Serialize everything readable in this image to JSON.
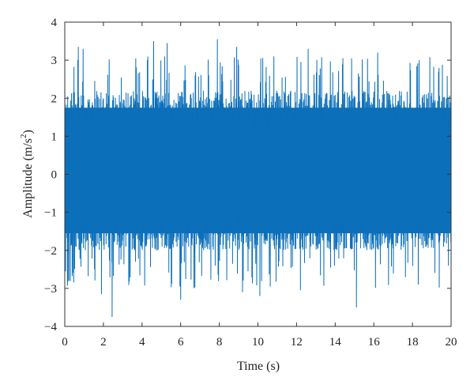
{
  "chart_data": {
    "type": "line",
    "title": "",
    "xlabel": "Time (s)",
    "ylabel_main": "Amplitude (m/s",
    "ylabel_sup": "2",
    "ylabel_tail": ")",
    "xlim": [
      0,
      20
    ],
    "ylim": [
      -4,
      4
    ],
    "x_ticks": [
      0,
      2,
      4,
      6,
      8,
      10,
      12,
      14,
      16,
      18,
      20
    ],
    "y_ticks": [
      -4,
      -3,
      -2,
      -1,
      0,
      1,
      2,
      3,
      4
    ],
    "x_tick_labels": [
      "0",
      "2",
      "4",
      "6",
      "8",
      "10",
      "12",
      "14",
      "16",
      "18",
      "20"
    ],
    "y_tick_labels": [
      "−4",
      "−3",
      "−2",
      "−1",
      "0",
      "1",
      "2",
      "3",
      "4"
    ],
    "grid": false,
    "series": [
      {
        "color": "#0b6fba",
        "description_values": "dense random vibration signal, approximately zero-mean",
        "core_band": [
          -2.0,
          2.2
        ],
        "notable_peaks": [
          {
            "x": 0.7,
            "y": 3.35
          },
          {
            "x": 0.95,
            "y": 3.3
          },
          {
            "x": 4.6,
            "y": 3.5
          },
          {
            "x": 5.3,
            "y": 3.45
          },
          {
            "x": 7.9,
            "y": 3.55
          },
          {
            "x": 8.9,
            "y": 3.35
          },
          {
            "x": 12.6,
            "y": 3.3
          },
          {
            "x": 16.2,
            "y": 3.2
          }
        ],
        "notable_troughs": [
          {
            "x": 1.9,
            "y": -3.15
          },
          {
            "x": 2.45,
            "y": -3.75
          },
          {
            "x": 6.0,
            "y": -3.3
          },
          {
            "x": 9.2,
            "y": -3.1
          },
          {
            "x": 10.1,
            "y": -3.2
          },
          {
            "x": 12.2,
            "y": -3.05
          },
          {
            "x": 15.1,
            "y": -3.5
          },
          {
            "x": 18.3,
            "y": -2.9
          }
        ]
      }
    ]
  }
}
